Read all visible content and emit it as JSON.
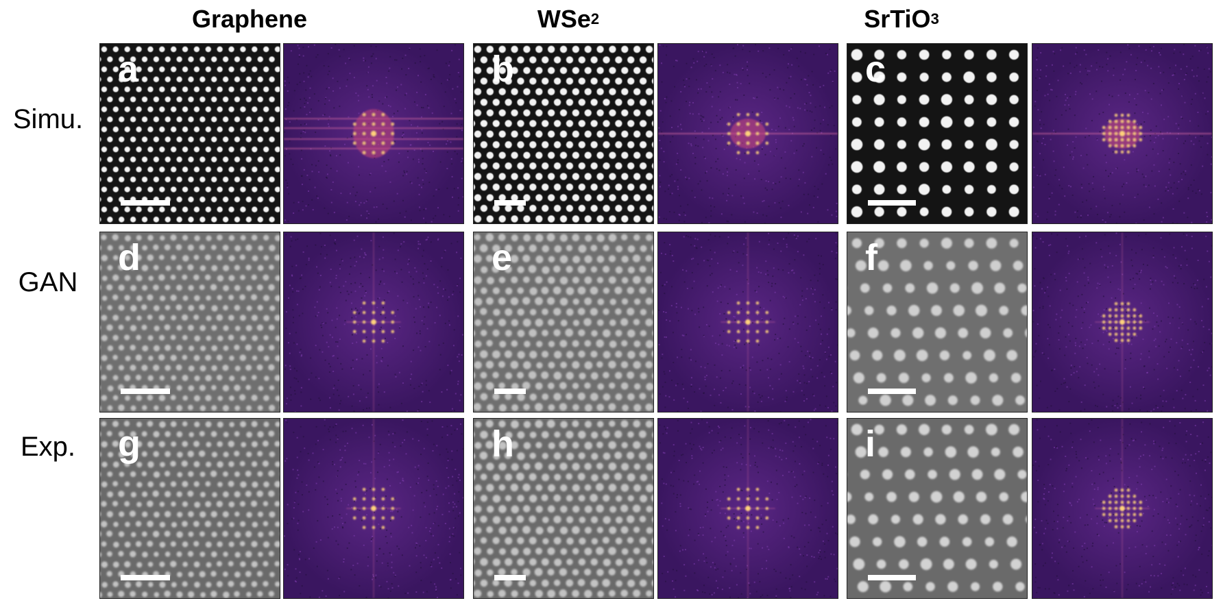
{
  "columns": [
    {
      "title": "Graphene",
      "sub": ""
    },
    {
      "title": "WSe",
      "sub": "2"
    },
    {
      "title": "SrTiO",
      "sub": "3"
    }
  ],
  "rows": [
    {
      "label": "Simu."
    },
    {
      "label": "GAN"
    },
    {
      "label": "Exp."
    }
  ],
  "panels": [
    {
      "letter": "a",
      "material": "Graphene",
      "condition": "Simu."
    },
    {
      "letter": "b",
      "material": "WSe2",
      "condition": "Simu."
    },
    {
      "letter": "c",
      "material": "SrTiO3",
      "condition": "Simu."
    },
    {
      "letter": "d",
      "material": "Graphene",
      "condition": "GAN"
    },
    {
      "letter": "e",
      "material": "WSe2",
      "condition": "GAN"
    },
    {
      "letter": "f",
      "material": "SrTiO3",
      "condition": "GAN"
    },
    {
      "letter": "g",
      "material": "Graphene",
      "condition": "Exp."
    },
    {
      "letter": "h",
      "material": "WSe2",
      "condition": "Exp."
    },
    {
      "letter": "i",
      "material": "SrTiO3",
      "condition": "Exp."
    }
  ],
  "colors": {
    "fft_background": "#3a1660",
    "fft_spot": "#ffd27a",
    "scale_bar": "#ffffff"
  }
}
